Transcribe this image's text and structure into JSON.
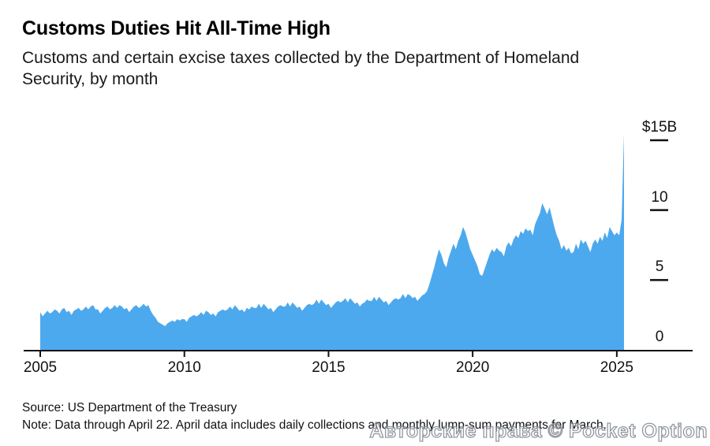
{
  "header": {
    "title": "Customs Duties Hit All-Time High",
    "subtitle_lines": [
      "Customs and certain excise taxes collected by the Department of Homeland",
      "Security, by month"
    ]
  },
  "footer": {
    "source": "Source: US Department of the Treasury",
    "note": "Note: Data through April 22. April data includes daily collections and monthly lump-sum payments for March."
  },
  "watermark": {
    "text": "Авторские права © Pocket Option"
  },
  "colors": {
    "area": "#4DA9EE",
    "axis": "#111111",
    "text": "#111111"
  },
  "chart_data": {
    "type": "area",
    "title": "Customs Duties Hit All-Time High",
    "subtitle": "Customs and certain excise taxes collected by the Department of Homeland Security, by month",
    "unit": "USD billions per month",
    "frequency": "monthly",
    "start": "2005-01",
    "end": "2025-04",
    "start_year": 2005,
    "xlabel": "",
    "ylabel": "$B",
    "ylim": [
      0,
      15.5
    ],
    "grid": false,
    "legend": "none",
    "area_color": "#4DA9EE",
    "x_ticks": [
      {
        "year": 2005,
        "label": "2005"
      },
      {
        "year": 2010,
        "label": "2010"
      },
      {
        "year": 2015,
        "label": "2015"
      },
      {
        "year": 2020,
        "label": "2020"
      },
      {
        "year": 2025,
        "label": "2025"
      }
    ],
    "y_ticks": [
      {
        "value": 15,
        "label": "$15B"
      },
      {
        "value": 10,
        "label": "10"
      },
      {
        "value": 5,
        "label": "5"
      },
      {
        "value": 0,
        "label": "0"
      }
    ],
    "values": [
      2.7,
      2.4,
      2.6,
      2.8,
      2.6,
      2.7,
      2.9,
      2.8,
      2.6,
      2.9,
      3.0,
      2.7,
      2.8,
      2.5,
      2.8,
      2.9,
      3.0,
      2.8,
      2.9,
      3.1,
      2.9,
      3.1,
      3.2,
      2.9,
      2.9,
      2.6,
      2.8,
      3.0,
      3.1,
      2.9,
      3.0,
      3.2,
      3.0,
      3.2,
      3.1,
      2.9,
      3.0,
      2.7,
      2.9,
      3.1,
      3.2,
      3.0,
      3.1,
      3.3,
      3.1,
      3.2,
      2.8,
      2.5,
      2.3,
      2.0,
      1.9,
      1.8,
      1.7,
      1.9,
      2.0,
      2.1,
      2.0,
      2.2,
      2.1,
      2.2,
      2.2,
      2.0,
      2.3,
      2.4,
      2.5,
      2.4,
      2.5,
      2.7,
      2.5,
      2.8,
      2.7,
      2.5,
      2.6,
      2.4,
      2.7,
      2.8,
      2.9,
      2.8,
      2.9,
      3.1,
      2.9,
      3.2,
      3.0,
      2.8,
      2.9,
      2.7,
      3.0,
      2.9,
      3.1,
      3.0,
      3.0,
      3.3,
      3.0,
      3.3,
      3.1,
      2.9,
      3.0,
      2.7,
      2.9,
      3.1,
      3.2,
      3.1,
      3.1,
      3.4,
      3.1,
      3.4,
      3.2,
      3.0,
      3.1,
      2.8,
      3.0,
      3.2,
      3.3,
      3.2,
      3.3,
      3.6,
      3.3,
      3.6,
      3.4,
      3.2,
      3.3,
      3.0,
      3.2,
      3.4,
      3.5,
      3.4,
      3.5,
      3.7,
      3.4,
      3.7,
      3.5,
      3.3,
      3.4,
      3.1,
      3.3,
      3.4,
      3.6,
      3.5,
      3.5,
      3.8,
      3.5,
      3.8,
      3.6,
      3.4,
      3.5,
      3.2,
      3.4,
      3.6,
      3.7,
      3.6,
      3.7,
      4.0,
      3.7,
      4.0,
      3.9,
      3.7,
      3.8,
      3.5,
      3.7,
      3.9,
      4.0,
      4.2,
      4.7,
      5.3,
      5.9,
      6.6,
      7.2,
      6.8,
      6.2,
      5.9,
      6.6,
      7.1,
      7.6,
      7.2,
      7.8,
      8.2,
      8.8,
      8.4,
      7.8,
      7.2,
      6.8,
      6.4,
      6.0,
      5.4,
      5.3,
      5.8,
      6.3,
      6.8,
      7.2,
      7.0,
      7.3,
      7.1,
      7.0,
      6.7,
      7.4,
      7.7,
      7.4,
      7.9,
      8.2,
      8.0,
      8.5,
      8.3,
      8.7,
      8.5,
      8.6,
      8.2,
      9.0,
      9.4,
      9.8,
      10.5,
      10.1,
      9.7,
      10.2,
      9.5,
      8.8,
      8.2,
      7.8,
      7.2,
      7.5,
      7.1,
      7.3,
      6.9,
      7.0,
      7.6,
      7.2,
      7.9,
      7.6,
      7.8,
      7.4,
      7.0,
      7.6,
      7.9,
      7.6,
      8.1,
      7.8,
      8.4,
      8.0,
      8.8,
      8.5,
      8.2,
      8.4,
      8.2,
      9.3,
      15.5
    ]
  }
}
